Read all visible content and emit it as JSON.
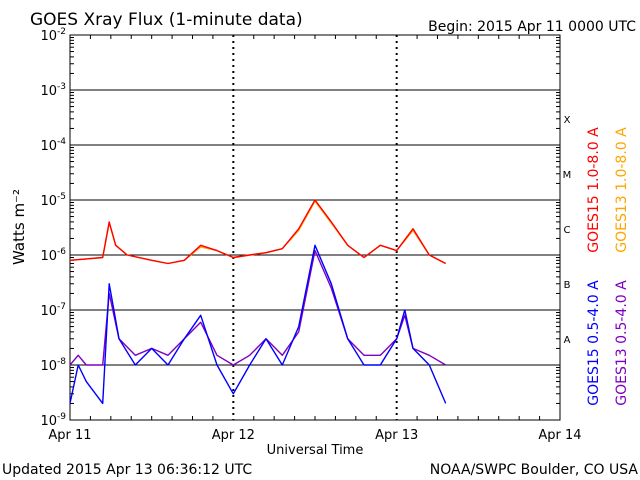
{
  "header": {
    "title": "GOES Xray Flux (1-minute data)",
    "begin": "Begin:  2015 Apr 11 0000 UTC"
  },
  "footer": {
    "updated": "Updated 2015 Apr 13 06:36:12 UTC",
    "source": "NOAA/SWPC Boulder, CO USA"
  },
  "colors": {
    "goes15_long": "#ff0000",
    "goes13_long": "#ffa500",
    "goes15_short": "#0000ff",
    "goes13_short": "#8000c0",
    "grid": "#000000"
  },
  "chart_data": {
    "type": "line",
    "xlabel": "Universal Time",
    "ylabel": "Watts m⁻²",
    "x_ticks": [
      "Apr 11",
      "Apr 12",
      "Apr 13",
      "Apr 14"
    ],
    "y_scale": "log",
    "ylim": [
      1e-09,
      0.01
    ],
    "y_tick_labels": [
      {
        "value": 0.01,
        "mantissa": "10",
        "exp": "-2"
      },
      {
        "value": 0.001,
        "mantissa": "10",
        "exp": "-3"
      },
      {
        "value": 0.0001,
        "mantissa": "10",
        "exp": "-4"
      },
      {
        "value": 1e-05,
        "mantissa": "10",
        "exp": "-5"
      },
      {
        "value": 1e-06,
        "mantissa": "10",
        "exp": "-6"
      },
      {
        "value": 1e-07,
        "mantissa": "10",
        "exp": "-7"
      },
      {
        "value": 1e-08,
        "mantissa": "10",
        "exp": "-8"
      },
      {
        "value": 1e-09,
        "mantissa": "10",
        "exp": "-9"
      }
    ],
    "flare_classes": [
      {
        "label": "X",
        "value": 0.0003
      },
      {
        "label": "M",
        "value": 3e-05
      },
      {
        "label": "C",
        "value": 3e-06
      },
      {
        "label": "B",
        "value": 3e-07
      },
      {
        "label": "A",
        "value": 3e-08
      }
    ],
    "grid": true,
    "legend_placement": "right",
    "x_unit": "days since 2015 Apr 11 0000 UTC",
    "series": [
      {
        "name": "GOES15 1.0-8.0 A",
        "color": "#ff0000",
        "x": [
          0.0,
          0.1,
          0.2,
          0.24,
          0.28,
          0.35,
          0.5,
          0.6,
          0.7,
          0.8,
          0.9,
          1.0,
          1.1,
          1.2,
          1.3,
          1.4,
          1.5,
          1.6,
          1.7,
          1.8,
          1.9,
          2.0,
          2.1,
          2.2,
          2.3
        ],
        "y": [
          8e-07,
          8.5e-07,
          9e-07,
          4e-06,
          1.5e-06,
          1e-06,
          8e-07,
          7e-07,
          8e-07,
          1.5e-06,
          1.2e-06,
          9e-07,
          1e-06,
          1.1e-06,
          1.3e-06,
          3e-06,
          1e-05,
          4e-06,
          1.5e-06,
          9e-07,
          1.5e-06,
          1.2e-06,
          3e-06,
          1e-06,
          7e-07
        ]
      },
      {
        "name": "GOES13 1.0-8.0 A",
        "color": "#ffa500",
        "x": [
          0.0,
          0.1,
          0.2,
          0.24,
          0.28,
          0.35,
          0.5,
          0.6,
          0.7,
          0.8,
          0.9,
          1.0,
          1.1,
          1.2,
          1.3,
          1.4,
          1.5,
          1.6,
          1.7,
          1.8,
          1.9,
          2.0,
          2.1,
          2.2,
          2.3
        ],
        "y": [
          8e-07,
          8.5e-07,
          9e-07,
          3.8e-06,
          1.5e-06,
          1e-06,
          8e-07,
          7e-07,
          8e-07,
          1.4e-06,
          1.2e-06,
          9e-07,
          1e-06,
          1.1e-06,
          1.3e-06,
          2.8e-06,
          9.5e-06,
          3.8e-06,
          1.5e-06,
          9e-07,
          1.5e-06,
          1.2e-06,
          2.8e-06,
          1e-06,
          7e-07
        ]
      },
      {
        "name": "GOES15 0.5-4.0 A",
        "color": "#0000ff",
        "x": [
          0.0,
          0.05,
          0.1,
          0.2,
          0.24,
          0.3,
          0.4,
          0.5,
          0.6,
          0.7,
          0.8,
          0.9,
          1.0,
          1.1,
          1.2,
          1.3,
          1.4,
          1.5,
          1.6,
          1.7,
          1.8,
          1.9,
          2.0,
          2.05,
          2.1,
          2.2,
          2.3
        ],
        "y": [
          2e-09,
          1e-08,
          5e-09,
          2e-09,
          3e-07,
          3e-08,
          1e-08,
          2e-08,
          1e-08,
          3e-08,
          8e-08,
          1e-08,
          3e-09,
          1e-08,
          3e-08,
          1e-08,
          5e-08,
          1.5e-06,
          3e-07,
          3e-08,
          1e-08,
          1e-08,
          3e-08,
          1e-07,
          2e-08,
          1e-08,
          2e-09
        ]
      },
      {
        "name": "GOES13 0.5-4.0 A",
        "color": "#8000c0",
        "x": [
          0.0,
          0.05,
          0.1,
          0.2,
          0.24,
          0.3,
          0.4,
          0.5,
          0.6,
          0.7,
          0.8,
          0.9,
          1.0,
          1.1,
          1.2,
          1.3,
          1.4,
          1.5,
          1.6,
          1.7,
          1.8,
          1.9,
          2.0,
          2.05,
          2.1,
          2.2,
          2.3
        ],
        "y": [
          1e-08,
          1.5e-08,
          1e-08,
          1e-08,
          2e-07,
          3e-08,
          1.5e-08,
          2e-08,
          1.5e-08,
          3e-08,
          6e-08,
          1.5e-08,
          1e-08,
          1.5e-08,
          3e-08,
          1.5e-08,
          4e-08,
          1.2e-06,
          2.5e-07,
          3e-08,
          1.5e-08,
          1.5e-08,
          3e-08,
          8e-08,
          2e-08,
          1.5e-08,
          1e-08
        ]
      }
    ]
  }
}
